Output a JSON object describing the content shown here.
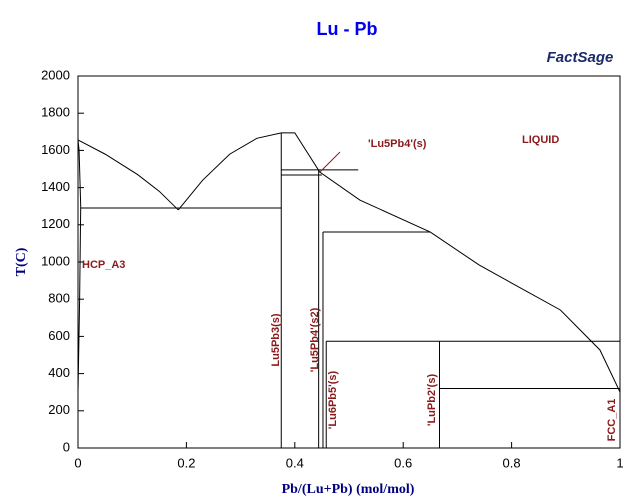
{
  "chart_data": {
    "type": "line",
    "title": "Lu - Pb",
    "logo": "FactSage",
    "x_label": "Pb/(Lu+Pb) (mol/mol)",
    "y_label": "T(C)",
    "xlim": [
      0,
      1
    ],
    "ylim": [
      0,
      2000
    ],
    "xticks": [
      0,
      0.2,
      0.4,
      0.6,
      0.8,
      1
    ],
    "yticks": [
      0,
      200,
      400,
      600,
      800,
      1000,
      1200,
      1400,
      1600,
      1800,
      2000
    ],
    "color": "#000000",
    "series": [
      {
        "x": [
          0,
          0.05,
          0.11,
          0.15,
          0.185
        ],
        "values": [
          1656,
          1580,
          1470,
          1380,
          1280
        ]
      },
      {
        "x": [
          0.185,
          0.23,
          0.28,
          0.33,
          0.375,
          0.4,
          0.446,
          0.52,
          0.65,
          0.74,
          0.8,
          0.89,
          0.963,
          1
        ],
        "values": [
          1280,
          1440,
          1580,
          1665,
          1694,
          1694,
          1484,
          1333,
          1161,
          984,
          887,
          742,
          527,
          301
        ]
      },
      {
        "x": [
          0,
          0.002,
          0.005,
          0.003,
          0
        ],
        "values": [
          1656,
          1600,
          1300,
          800,
          300
        ]
      },
      {
        "x": [
          0.005,
          0.375
        ],
        "values": [
          1290,
          1290
        ]
      },
      {
        "x": [
          0.375,
          0.517
        ],
        "values": [
          1495,
          1495
        ]
      },
      {
        "x": [
          0.375,
          0.45
        ],
        "values": [
          1468,
          1468
        ]
      },
      {
        "x": [
          0.452,
          0.65
        ],
        "values": [
          1161,
          1161
        ]
      },
      {
        "x": [
          0.458,
          1
        ],
        "values": [
          574,
          574
        ]
      },
      {
        "x": [
          0.667,
          1
        ],
        "values": [
          320,
          320
        ]
      },
      {
        "x": [
          0.375,
          0.375
        ],
        "values": [
          0,
          1694
        ]
      },
      {
        "x": [
          0.444,
          0.444
        ],
        "values": [
          0,
          1495
        ]
      },
      {
        "x": [
          0.452,
          0.452
        ],
        "values": [
          0,
          1161
        ]
      },
      {
        "x": [
          0.458,
          0.458
        ],
        "values": [
          0,
          574
        ]
      },
      {
        "x": [
          0.667,
          0.667
        ],
        "values": [
          0,
          574
        ]
      }
    ],
    "annotations": [
      "LIQUID",
      "'Lu5Pb4'(s)",
      "HCP_A3",
      "Lu5Pb3(s)",
      "'Lu5Pb4'(s2)",
      "'Lu6Pb5'(s)",
      "'LuPb2'(s)",
      "FCC_A1"
    ]
  }
}
